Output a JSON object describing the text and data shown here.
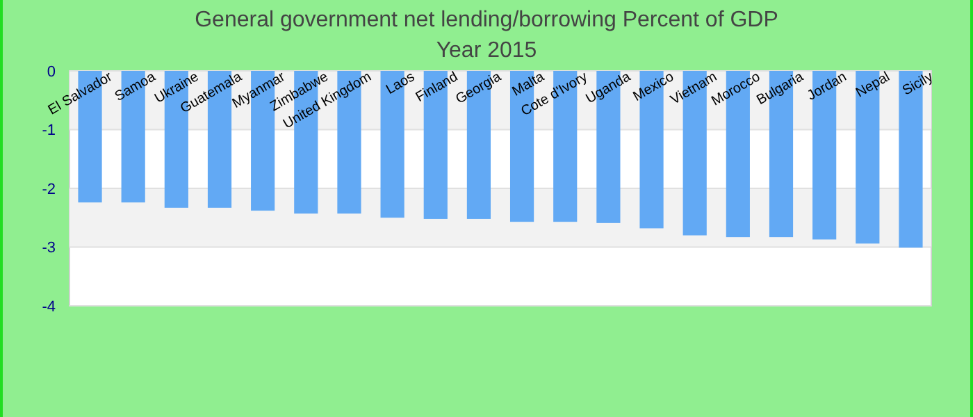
{
  "chart_data": {
    "type": "bar",
    "title": "General government net lending/borrowing  Percent of GDP",
    "subtitle": "Year 2015",
    "categories": [
      "El Salvador",
      "Samoa",
      "Ukraine",
      "Guatemala",
      "Myanmar",
      "Zimbabwe",
      "United Kingdom",
      "Laos",
      "Finland",
      "Georgia",
      "Malta",
      "Cote d'Ivory",
      "Uganda",
      "Mexico",
      "Vietnam",
      "Morocco",
      "Bulgaria",
      "Jordan",
      "Nepal",
      "Sicily"
    ],
    "values": [
      -2.24,
      -2.24,
      -2.33,
      -2.33,
      -2.38,
      -2.43,
      -2.43,
      -2.5,
      -2.52,
      -2.52,
      -2.57,
      -2.57,
      -2.59,
      -2.68,
      -2.8,
      -2.83,
      -2.83,
      -2.87,
      -2.94,
      -3.01
    ],
    "color": "#62a9f4",
    "ylim": [
      -4,
      0
    ],
    "yticks": [
      0,
      -1,
      -2,
      -3,
      -4
    ],
    "grid": "y"
  }
}
